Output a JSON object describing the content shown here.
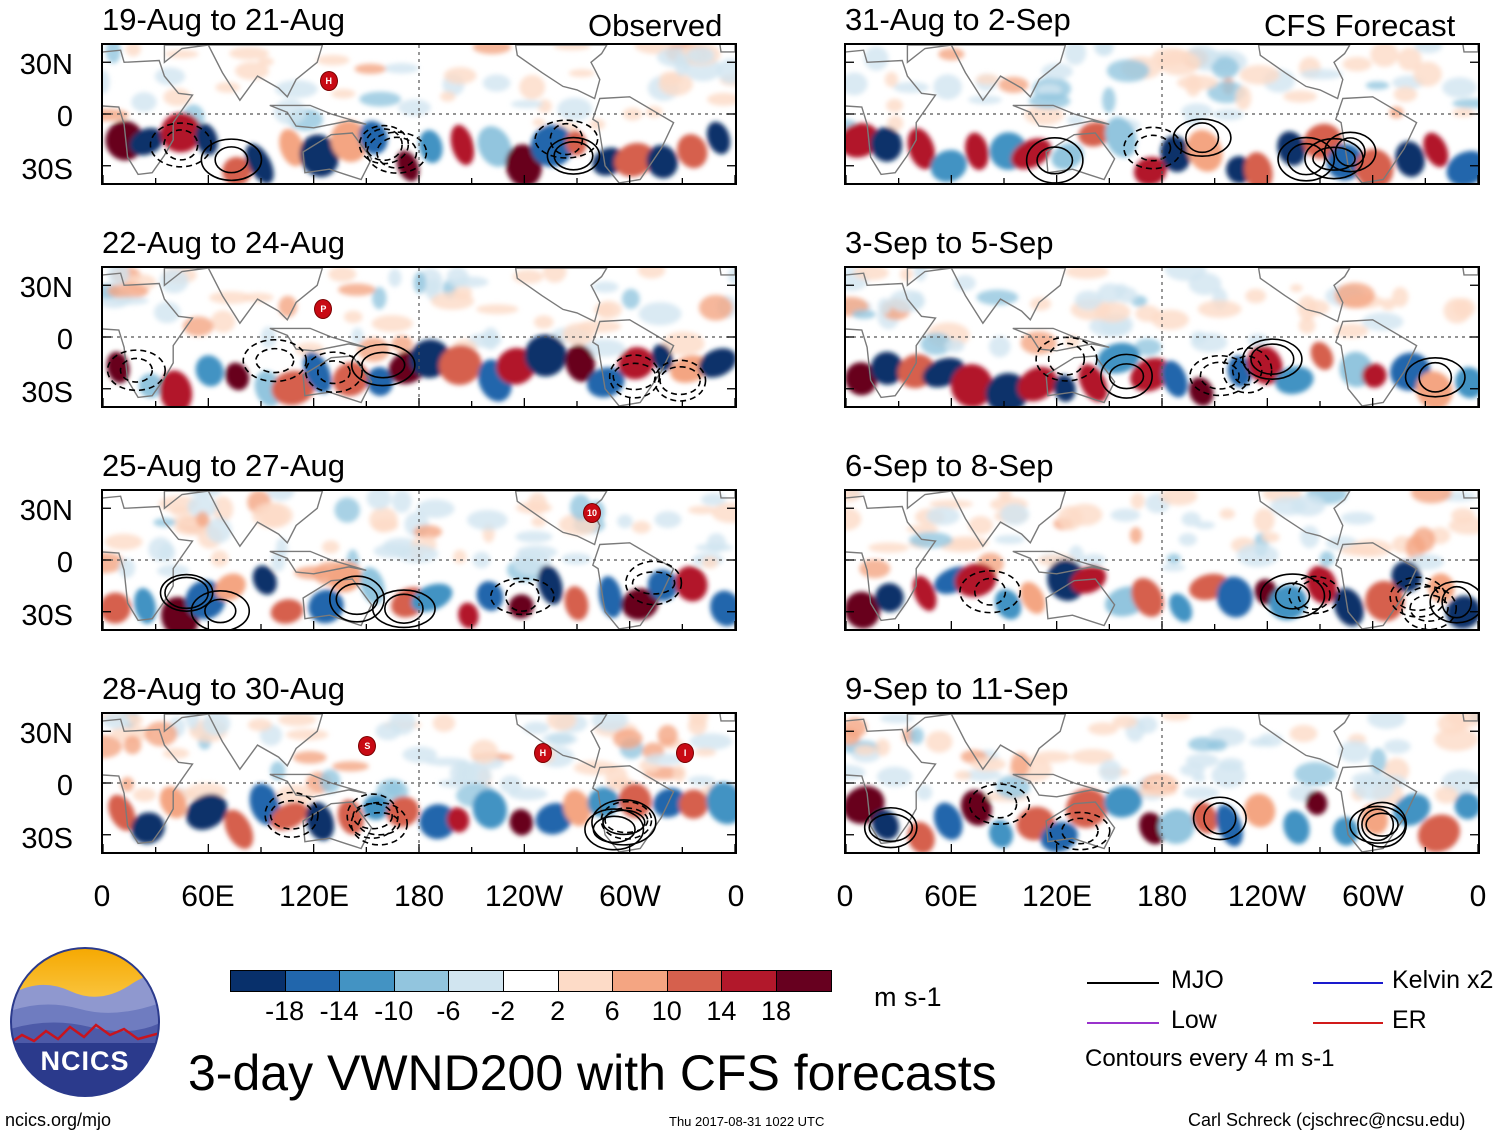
{
  "column_headers": {
    "left": "Observed",
    "right": "CFS Forecast"
  },
  "panels": [
    {
      "title": "19-Aug to 21-Aug",
      "storms": [
        {
          "label": "H"
        }
      ]
    },
    {
      "title": "22-Aug to 24-Aug",
      "storms": [
        {
          "label": "P"
        }
      ]
    },
    {
      "title": "25-Aug to 27-Aug",
      "storms": [
        {
          "label": "10"
        }
      ]
    },
    {
      "title": "28-Aug to 30-Aug",
      "storms": [
        {
          "label": "S"
        },
        {
          "label": "H"
        },
        {
          "label": "I"
        }
      ]
    },
    {
      "title": "31-Aug to 2-Sep",
      "storms": []
    },
    {
      "title": "3-Sep to 5-Sep",
      "storms": []
    },
    {
      "title": "6-Sep to 8-Sep",
      "storms": []
    },
    {
      "title": "9-Sep to 11-Sep",
      "storms": []
    }
  ],
  "y_axis": [
    "30N",
    "0",
    "30S"
  ],
  "x_axis": [
    "0",
    "60E",
    "120E",
    "180",
    "120W",
    "60W",
    "0"
  ],
  "colorbar": {
    "unit": "m s-1",
    "tick_labels": [
      "-18",
      "-14",
      "-10",
      "-6",
      "-2",
      "2",
      "6",
      "10",
      "14",
      "18"
    ],
    "colors": [
      "#08306b",
      "#2166ac",
      "#4393c3",
      "#92c5de",
      "#d1e5f0",
      "#ffffff",
      "#fddbc7",
      "#f4a582",
      "#d6604d",
      "#b2182b",
      "#67001f"
    ]
  },
  "legend": {
    "mjo": "MJO",
    "kelvin": "Kelvin x2",
    "low": "Low",
    "er": "ER",
    "contour_note": "Contours every 4 m s-1",
    "colors": {
      "mjo": "#000000",
      "kelvin": "#1a1acd",
      "low": "#9932cc",
      "er": "#d11a1a"
    }
  },
  "main_title": "3-day VWND200 with CFS forecasts",
  "logo": "NCICS",
  "footer": {
    "url": "ncics.org/mjo",
    "timestamp": "Thu 2017-08-31 1022 UTC",
    "credit": "Carl Schreck (cjschrec@ncsu.edu)"
  }
}
